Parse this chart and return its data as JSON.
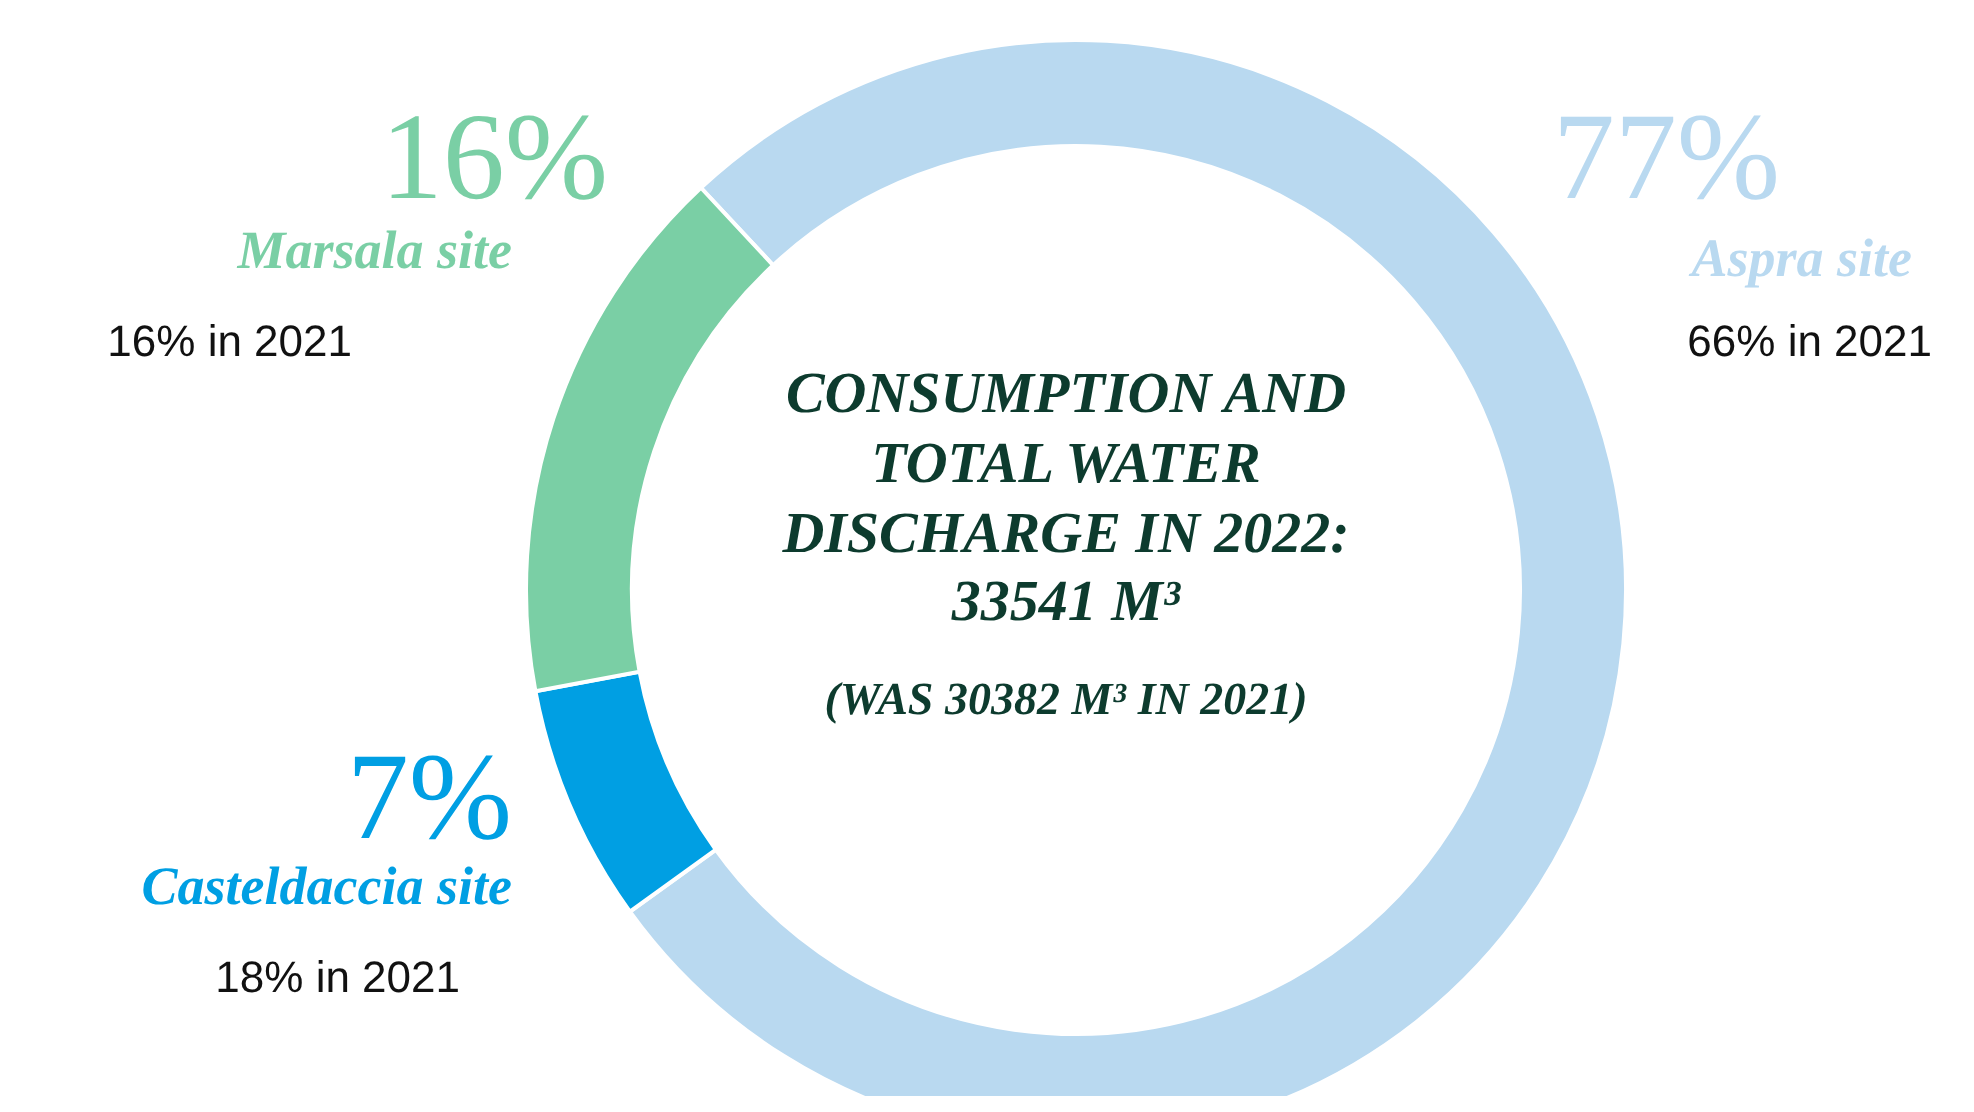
{
  "chart_data": {
    "type": "donut",
    "title": "CONSUMPTION AND TOTAL WATER DISCHARGE IN 2022: 33541 M³",
    "subtitle": "(WAS 30382 M³ IN 2021)",
    "categories": [
      "Aspra site",
      "Casteldaccia site",
      "Marsala site"
    ],
    "values": [
      77,
      7,
      16
    ],
    "value_labels": [
      "77%",
      "7%",
      "16%"
    ],
    "colors": [
      "#b9d9f0",
      "#009fe3",
      "#7acfa5"
    ],
    "annotations": [
      "66% in 2021",
      "18% in 2021",
      "16% in 2021"
    ],
    "legend": false
  }
}
